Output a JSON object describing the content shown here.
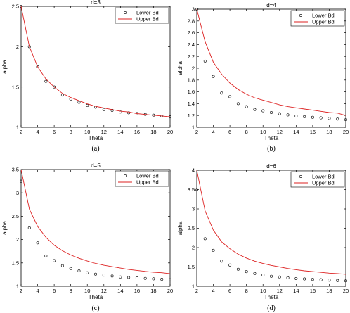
{
  "chart_data": [
    {
      "type": "line",
      "title": "d=3",
      "caption": "(a)",
      "xlabel": "Theta",
      "ylabel": "alpha",
      "xlim": [
        2,
        20
      ],
      "ylim": [
        1,
        2.5
      ],
      "xticks": [
        2,
        4,
        6,
        8,
        10,
        12,
        14,
        16,
        18,
        20
      ],
      "yticks": [
        1,
        1.5,
        2,
        2.5
      ],
      "legend_position": "top-right",
      "grid": false,
      "series": [
        {
          "name": "Lower Bd",
          "style": "markers",
          "color": "#000000",
          "x": [
            2,
            3,
            4,
            5,
            6,
            7,
            8,
            9,
            10,
            11,
            12,
            13,
            14,
            15,
            16,
            17,
            18,
            19,
            20
          ],
          "y": [
            2.5,
            2.0,
            1.75,
            1.57,
            1.5,
            1.4,
            1.35,
            1.31,
            1.27,
            1.25,
            1.22,
            1.21,
            1.19,
            1.18,
            1.17,
            1.16,
            1.15,
            1.14,
            1.13
          ]
        },
        {
          "name": "Upper Bd",
          "style": "line",
          "color": "#dd2222",
          "x": [
            2,
            3,
            4,
            5,
            6,
            7,
            8,
            9,
            10,
            11,
            12,
            13,
            14,
            15,
            16,
            17,
            18,
            19,
            20
          ],
          "y": [
            2.5,
            2.0,
            1.75,
            1.6,
            1.5,
            1.42,
            1.37,
            1.33,
            1.29,
            1.26,
            1.24,
            1.22,
            1.2,
            1.19,
            1.17,
            1.16,
            1.15,
            1.14,
            1.13
          ]
        }
      ]
    },
    {
      "type": "line",
      "title": "d=4",
      "caption": "(b)",
      "xlabel": "Theta",
      "ylabel": "alpha",
      "xlim": [
        2,
        20
      ],
      "ylim": [
        1,
        3
      ],
      "xticks": [
        2,
        4,
        6,
        8,
        10,
        12,
        14,
        16,
        18,
        20
      ],
      "yticks": [
        1,
        1.2,
        1.4,
        1.6,
        1.8,
        2,
        2.2,
        2.4,
        2.6,
        2.8,
        3
      ],
      "legend_position": "top-right",
      "grid": false,
      "series": [
        {
          "name": "Lower Bd",
          "style": "markers",
          "color": "#000000",
          "x": [
            2,
            3,
            4,
            5,
            6,
            7,
            8,
            9,
            10,
            11,
            12,
            13,
            14,
            15,
            16,
            17,
            18,
            19,
            20
          ],
          "y": [
            3.0,
            2.12,
            1.86,
            1.58,
            1.52,
            1.4,
            1.35,
            1.3,
            1.28,
            1.25,
            1.23,
            1.21,
            1.19,
            1.18,
            1.17,
            1.16,
            1.15,
            1.14,
            1.13
          ]
        },
        {
          "name": "Upper Bd",
          "style": "line",
          "color": "#dd2222",
          "x": [
            2,
            3,
            4,
            5,
            6,
            7,
            8,
            9,
            10,
            11,
            12,
            13,
            14,
            15,
            16,
            17,
            18,
            19,
            20
          ],
          "y": [
            3.0,
            2.45,
            2.1,
            1.9,
            1.75,
            1.64,
            1.56,
            1.5,
            1.46,
            1.42,
            1.38,
            1.35,
            1.33,
            1.31,
            1.29,
            1.27,
            1.25,
            1.24,
            1.2
          ]
        }
      ]
    },
    {
      "type": "line",
      "title": "d=5",
      "caption": "(c)",
      "xlabel": "Theta",
      "ylabel": "alpha",
      "xlim": [
        2,
        20
      ],
      "ylim": [
        1,
        3.5
      ],
      "xticks": [
        2,
        4,
        6,
        8,
        10,
        12,
        14,
        16,
        18,
        20
      ],
      "yticks": [
        1,
        1.5,
        2,
        2.5,
        3,
        3.5
      ],
      "legend_position": "top-right",
      "grid": false,
      "series": [
        {
          "name": "Lower Bd",
          "style": "markers",
          "color": "#000000",
          "x": [
            2,
            3,
            4,
            5,
            6,
            7,
            8,
            9,
            10,
            11,
            12,
            13,
            14,
            15,
            16,
            17,
            18,
            19,
            20
          ],
          "y": [
            3.25,
            2.25,
            1.93,
            1.65,
            1.55,
            1.44,
            1.38,
            1.33,
            1.29,
            1.26,
            1.24,
            1.22,
            1.2,
            1.19,
            1.18,
            1.17,
            1.16,
            1.15,
            1.14
          ]
        },
        {
          "name": "Upper Bd",
          "style": "line",
          "color": "#dd2222",
          "x": [
            2,
            3,
            4,
            5,
            6,
            7,
            8,
            9,
            10,
            11,
            12,
            13,
            14,
            15,
            16,
            17,
            18,
            19,
            20
          ],
          "y": [
            3.5,
            2.65,
            2.28,
            2.05,
            1.88,
            1.76,
            1.67,
            1.6,
            1.54,
            1.49,
            1.45,
            1.42,
            1.39,
            1.36,
            1.34,
            1.32,
            1.3,
            1.29,
            1.27
          ]
        }
      ]
    },
    {
      "type": "line",
      "title": "d=6",
      "caption": "(d)",
      "xlabel": "Theta",
      "ylabel": "alpha",
      "xlim": [
        2,
        20
      ],
      "ylim": [
        1,
        4
      ],
      "xticks": [
        2,
        4,
        6,
        8,
        10,
        12,
        14,
        16,
        18,
        20
      ],
      "yticks": [
        1,
        1.5,
        2,
        2.5,
        3,
        3.5,
        4
      ],
      "legend_position": "top-right",
      "grid": false,
      "series": [
        {
          "name": "Lower Bd",
          "style": "markers",
          "color": "#000000",
          "x": [
            2,
            3,
            4,
            5,
            6,
            7,
            8,
            9,
            10,
            11,
            12,
            13,
            14,
            15,
            16,
            17,
            18,
            19,
            20
          ],
          "y": [
            3.5,
            2.23,
            1.93,
            1.65,
            1.55,
            1.44,
            1.38,
            1.33,
            1.29,
            1.26,
            1.24,
            1.22,
            1.2,
            1.19,
            1.18,
            1.17,
            1.16,
            1.15,
            1.14
          ]
        },
        {
          "name": "Upper Bd",
          "style": "line",
          "color": "#dd2222",
          "x": [
            2,
            3,
            4,
            5,
            6,
            7,
            8,
            9,
            10,
            11,
            12,
            13,
            14,
            15,
            16,
            17,
            18,
            19,
            20
          ],
          "y": [
            4.0,
            2.95,
            2.45,
            2.15,
            1.97,
            1.83,
            1.73,
            1.65,
            1.59,
            1.54,
            1.5,
            1.46,
            1.43,
            1.4,
            1.38,
            1.36,
            1.34,
            1.33,
            1.31
          ]
        }
      ]
    }
  ]
}
